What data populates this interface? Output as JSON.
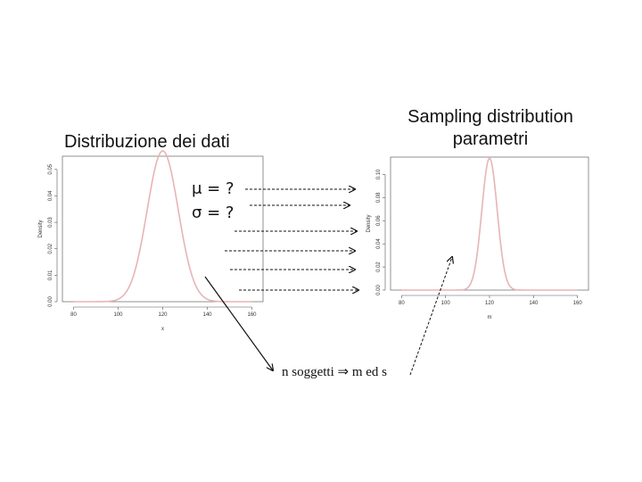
{
  "titles": {
    "left": "Distribuzione dei dati",
    "right_line1": "Sampling distribution",
    "right_line2": "parametri"
  },
  "params": {
    "mu": "μ = ?",
    "sigma": "σ = ?"
  },
  "caption": "n soggetti ⇒ m ed s",
  "chart_data": [
    {
      "type": "line",
      "title": "",
      "xlabel": "x",
      "ylabel": "Density",
      "xlim": [
        75,
        165
      ],
      "ylim": [
        0,
        0.055
      ],
      "xticks": [
        80,
        100,
        120,
        140,
        160
      ],
      "yticks": [
        0.0,
        0.01,
        0.02,
        0.03,
        0.04,
        0.05
      ],
      "ytick_labels": [
        "0.00",
        "0.01",
        "0.02",
        "0.03",
        "0.04",
        "0.05"
      ],
      "curve": {
        "distribution": "normal",
        "mean": 120,
        "sd": 7,
        "x_range": [
          80,
          160
        ]
      },
      "line_color": "#e8b4b4",
      "grid": false,
      "legend": "none"
    },
    {
      "type": "line",
      "title": "",
      "xlabel": "m",
      "ylabel": "Density",
      "xlim": [
        75,
        165
      ],
      "ylim": [
        0,
        0.115
      ],
      "xticks": [
        80,
        100,
        120,
        140,
        160
      ],
      "yticks": [
        0.0,
        0.02,
        0.04,
        0.06,
        0.08,
        0.1
      ],
      "ytick_labels": [
        "0.00",
        "0.02",
        "0.04",
        "0.06",
        "0.08",
        "0.10"
      ],
      "curve": {
        "distribution": "normal",
        "mean": 120,
        "sd": 3.5,
        "x_range": [
          80,
          160
        ]
      },
      "line_color": "#e8b4b4",
      "grid": false,
      "legend": "none"
    }
  ]
}
